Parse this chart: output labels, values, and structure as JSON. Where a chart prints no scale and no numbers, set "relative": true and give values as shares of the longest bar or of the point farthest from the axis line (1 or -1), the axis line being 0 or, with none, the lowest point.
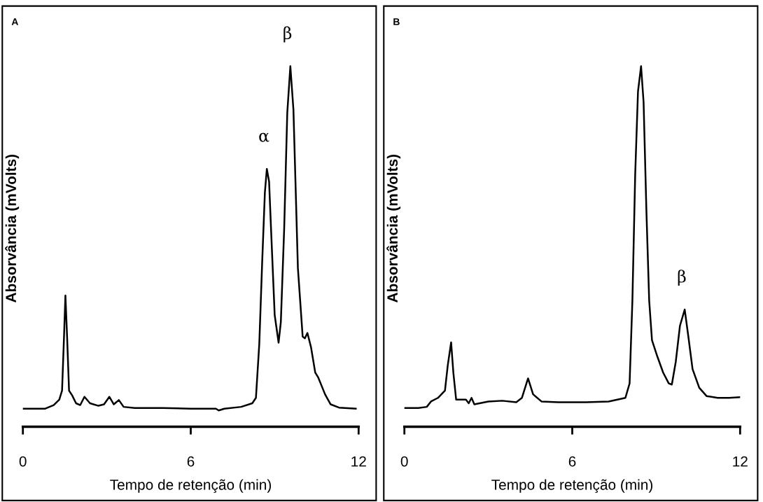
{
  "chart_data": [
    {
      "type": "line",
      "xlabel": "Tempo de retenção (min)",
      "ylabel": "Absorvância (mVolts)",
      "relative": true,
      "xlim": [
        0,
        12
      ],
      "xticks": [
        0,
        6,
        12
      ],
      "x": [
        0.0,
        0.8,
        1.1,
        1.3,
        1.4,
        1.47,
        1.52,
        1.58,
        1.65,
        1.76,
        1.9,
        2.05,
        2.2,
        2.4,
        2.7,
        2.9,
        3.09,
        3.25,
        3.43,
        3.6,
        4.0,
        5.0,
        6.0,
        6.9,
        7.0,
        7.2,
        7.8,
        8.2,
        8.33,
        8.45,
        8.55,
        8.65,
        8.72,
        8.8,
        8.88,
        9.0,
        9.14,
        9.22,
        9.34,
        9.45,
        9.56,
        9.67,
        9.83,
        10.0,
        10.08,
        10.17,
        10.3,
        10.45,
        10.56,
        10.8,
        11.0,
        11.3,
        11.9
      ],
      "series": [
        {
          "color": "#000000",
          "values": [
            0.05,
            0.05,
            0.06,
            0.075,
            0.1,
            0.25,
            0.364,
            0.25,
            0.1,
            0.087,
            0.065,
            0.06,
            0.083,
            0.065,
            0.058,
            0.062,
            0.083,
            0.062,
            0.074,
            0.055,
            0.052,
            0.052,
            0.05,
            0.05,
            0.045,
            0.05,
            0.055,
            0.065,
            0.08,
            0.23,
            0.45,
            0.65,
            0.715,
            0.68,
            0.53,
            0.31,
            0.233,
            0.29,
            0.55,
            0.87,
            1.0,
            0.88,
            0.44,
            0.25,
            0.245,
            0.26,
            0.22,
            0.15,
            0.136,
            0.09,
            0.062,
            0.053,
            0.05
          ]
        }
      ],
      "annotations": [
        "A",
        {
          "text": "α",
          "x": 8.72,
          "y": 0.715
        },
        {
          "text": "β",
          "x": 9.56,
          "y": 1.0
        }
      ]
    },
    {
      "type": "line",
      "xlabel": "Tempo de retenção (min)",
      "ylabel": "Absorvância (mVolts)",
      "relative": true,
      "xlim": [
        0,
        12
      ],
      "xticks": [
        0,
        6,
        12
      ],
      "x": [
        0.0,
        0.5,
        0.8,
        0.95,
        1.2,
        1.45,
        1.55,
        1.67,
        1.75,
        1.85,
        2.2,
        2.3,
        2.4,
        2.5,
        3.0,
        3.5,
        4.0,
        4.2,
        4.42,
        4.6,
        4.9,
        5.5,
        6.5,
        7.3,
        7.9,
        8.05,
        8.15,
        8.25,
        8.35,
        8.46,
        8.55,
        8.65,
        8.75,
        8.85,
        9.04,
        9.25,
        9.45,
        9.56,
        9.7,
        9.85,
        10.02,
        10.15,
        10.3,
        10.54,
        10.8,
        11.2,
        11.6,
        12.0
      ],
      "series": [
        {
          "color": "#000000",
          "values": [
            0.052,
            0.052,
            0.055,
            0.07,
            0.08,
            0.1,
            0.17,
            0.234,
            0.15,
            0.075,
            0.075,
            0.065,
            0.08,
            0.062,
            0.07,
            0.072,
            0.068,
            0.08,
            0.134,
            0.09,
            0.07,
            0.068,
            0.068,
            0.07,
            0.08,
            0.12,
            0.35,
            0.7,
            0.93,
            1.0,
            0.9,
            0.6,
            0.35,
            0.24,
            0.195,
            0.15,
            0.12,
            0.117,
            0.18,
            0.28,
            0.325,
            0.25,
            0.16,
            0.108,
            0.085,
            0.08,
            0.08,
            0.082
          ]
        }
      ],
      "annotations": [
        "B",
        {
          "text": "β",
          "x": 10.02,
          "y": 0.325
        }
      ]
    }
  ]
}
